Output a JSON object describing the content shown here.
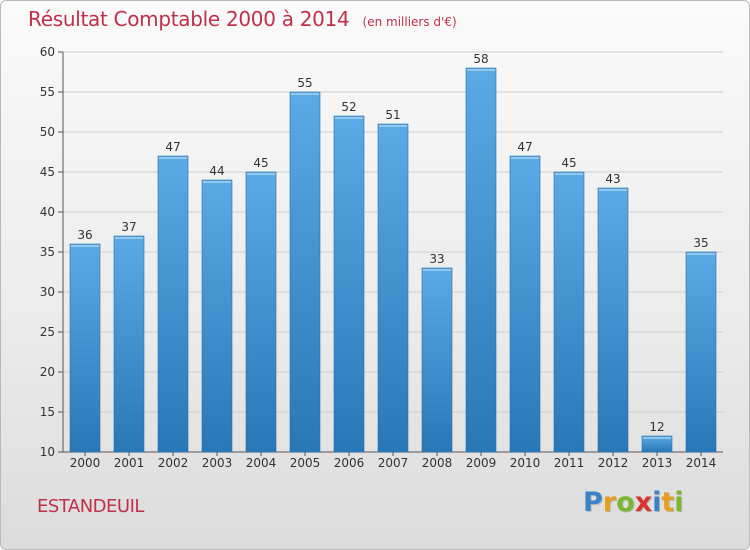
{
  "header": {
    "title": "Résultat Comptable 2000 à 2014",
    "unit": "(en milliers d'€)"
  },
  "footer": {
    "commune": "ESTANDEUIL",
    "logo_letters": [
      "P",
      "r",
      "o",
      "x",
      "i",
      "t",
      "i"
    ]
  },
  "colors": {
    "title": "#c0304a",
    "bar_top": "#5aaae6",
    "bar_bottom": "#2878b8",
    "grid": "#cfcfcf"
  },
  "chart_data": {
    "type": "bar",
    "title": "Résultat Comptable 2000 à 2014",
    "subtitle": "(en milliers d'€)",
    "categories": [
      "2000",
      "2001",
      "2002",
      "2003",
      "2004",
      "2005",
      "2006",
      "2007",
      "2008",
      "2009",
      "2010",
      "2011",
      "2012",
      "2013",
      "2014"
    ],
    "values": [
      36,
      37,
      47,
      44,
      45,
      55,
      52,
      51,
      33,
      58,
      47,
      45,
      43,
      12,
      35
    ],
    "ylim": [
      10,
      60
    ],
    "yticks": [
      10,
      15,
      20,
      25,
      30,
      35,
      40,
      45,
      50,
      55,
      60
    ],
    "grid": true,
    "xlabel": "",
    "ylabel": ""
  }
}
